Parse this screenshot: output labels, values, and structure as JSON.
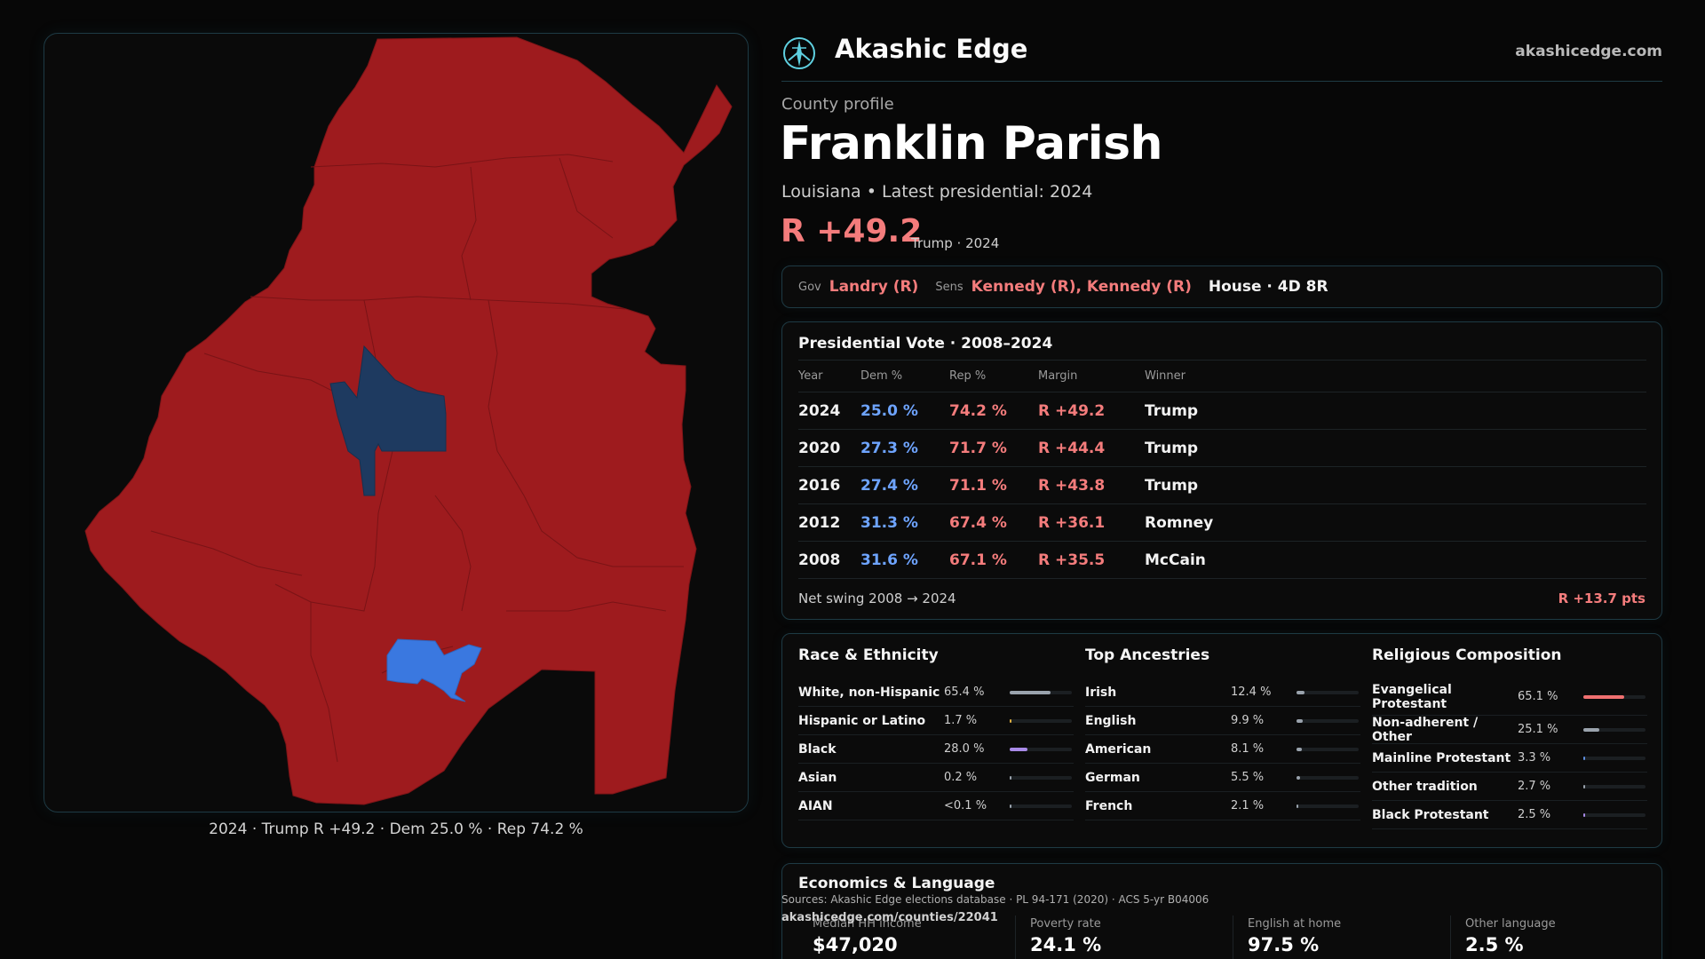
{
  "map": {
    "caption": "2024 · Trump R +49.2 · Dem 25.0 % · Rep 74.2 %",
    "colors": {
      "rep": "#9e1b1e",
      "dem_light": "#3a78e0",
      "dem_dark": "#1e3a60",
      "background": "#0a0a0a"
    }
  },
  "header": {
    "brand": "Akashic Edge",
    "site": "akashicedge.com",
    "logo_icon": "compass-rose-icon"
  },
  "profile": {
    "eyebrow": "County profile",
    "title": "Franklin Parish",
    "subtitle": "Louisiana • Latest presidential: 2024",
    "margin": "R +49.2",
    "margin_note": "Trump · 2024"
  },
  "officials": {
    "gov_label": "Gov",
    "gov": "Landry (R)",
    "sens_label": "Sens",
    "sens": "Kennedy (R), Kennedy (R)",
    "house": "House · 4D 8R"
  },
  "presidential": {
    "title": "Presidential Vote · 2008–2024",
    "headers": [
      "Year",
      "Dem %",
      "Rep %",
      "Margin",
      "Winner"
    ],
    "rows": [
      {
        "year": "2024",
        "dem": "25.0 %",
        "rep": "74.2 %",
        "margin": "R +49.2",
        "winner": "Trump"
      },
      {
        "year": "2020",
        "dem": "27.3 %",
        "rep": "71.7 %",
        "margin": "R +44.4",
        "winner": "Trump"
      },
      {
        "year": "2016",
        "dem": "27.4 %",
        "rep": "71.1 %",
        "margin": "R +43.8",
        "winner": "Trump"
      },
      {
        "year": "2012",
        "dem": "31.3 %",
        "rep": "67.4 %",
        "margin": "R +36.1",
        "winner": "Romney"
      },
      {
        "year": "2008",
        "dem": "31.6 %",
        "rep": "67.1 %",
        "margin": "R +35.5",
        "winner": "McCain"
      }
    ],
    "swing_label": "Net swing 2008 → 2024",
    "swing_value": "R +13.7 pts"
  },
  "race": {
    "title": "Race & Ethnicity",
    "rows": [
      {
        "name": "White, non-Hispanic",
        "value": "65.4 %",
        "pct": 65.4,
        "color": "#9aa3ad"
      },
      {
        "name": "Hispanic or Latino",
        "value": "1.7 %",
        "pct": 1.7,
        "color": "#e0b040"
      },
      {
        "name": "Black",
        "value": "28.0 %",
        "pct": 28.0,
        "color": "#a98be8"
      },
      {
        "name": "Asian",
        "value": "0.2 %",
        "pct": 0.2,
        "color": "#9aa3ad"
      },
      {
        "name": "AIAN",
        "value": "<0.1 %",
        "pct": 0.05,
        "color": "#9aa3ad"
      }
    ]
  },
  "ancestry": {
    "title": "Top Ancestries",
    "rows": [
      {
        "name": "Irish",
        "value": "12.4 %",
        "pct": 12.4,
        "color": "#9aa3ad"
      },
      {
        "name": "English",
        "value": "9.9 %",
        "pct": 9.9,
        "color": "#9aa3ad"
      },
      {
        "name": "American",
        "value": "8.1 %",
        "pct": 8.1,
        "color": "#9aa3ad"
      },
      {
        "name": "German",
        "value": "5.5 %",
        "pct": 5.5,
        "color": "#9aa3ad"
      },
      {
        "name": "French",
        "value": "2.1 %",
        "pct": 2.1,
        "color": "#9aa3ad"
      }
    ]
  },
  "religion": {
    "title": "Religious Composition",
    "rows": [
      {
        "name": "Evangelical Protestant",
        "value": "65.1 %",
        "pct": 65.1,
        "color": "#f07070"
      },
      {
        "name": "Non-adherent / Other",
        "value": "25.1 %",
        "pct": 25.1,
        "color": "#9aa3ad"
      },
      {
        "name": "Mainline Protestant",
        "value": "3.3 %",
        "pct": 3.3,
        "color": "#5f8fe0"
      },
      {
        "name": "Other tradition",
        "value": "2.7 %",
        "pct": 2.7,
        "color": "#9aa3ad"
      },
      {
        "name": "Black Protestant",
        "value": "2.5 %",
        "pct": 2.5,
        "color": "#a98be8"
      }
    ]
  },
  "economics": {
    "title": "Economics & Language",
    "stats": [
      {
        "label": "Median HH income",
        "value": "$47,020"
      },
      {
        "label": "Poverty rate",
        "value": "24.1 %"
      },
      {
        "label": "English at home",
        "value": "97.5 %"
      },
      {
        "label": "Other language",
        "value": "2.5 %"
      }
    ]
  },
  "footer": {
    "sources": "Sources: Akashic Edge elections database · PL 94-171 (2020) · ACS 5-yr B04006",
    "permalink": "akashicedge.com/counties/22041"
  }
}
